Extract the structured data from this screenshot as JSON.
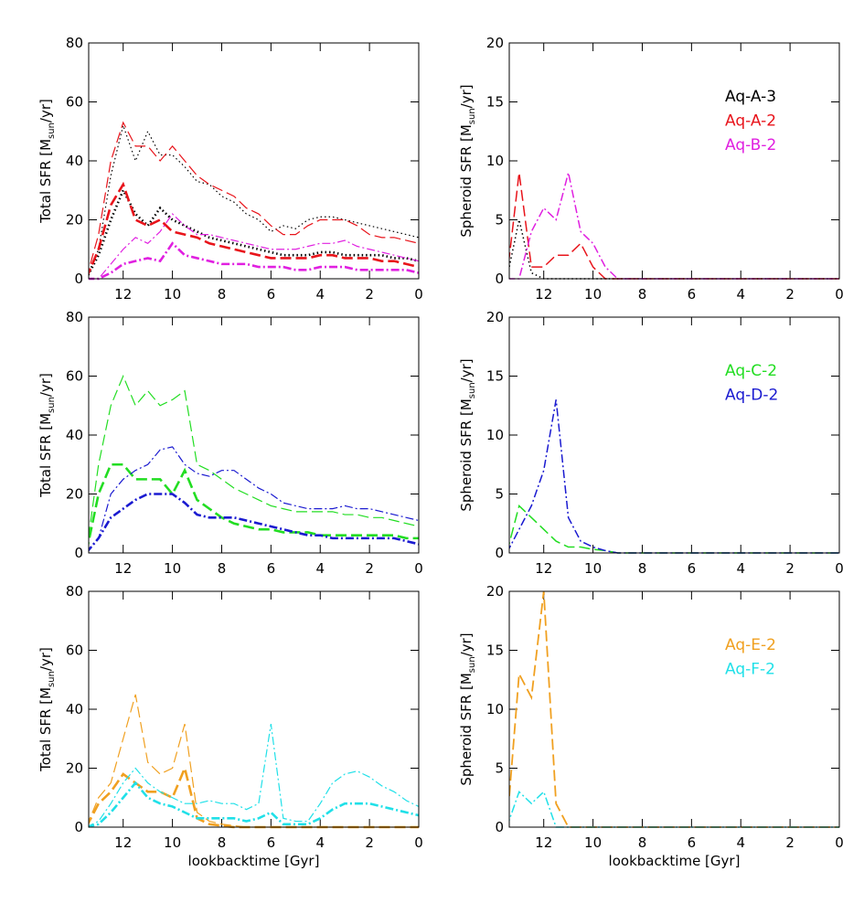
{
  "chart_data": [
    {
      "type": "line",
      "ylabel": [
        "Total SFR [M",
        "sun",
        "/yr]"
      ],
      "xlim": [
        13.4,
        0
      ],
      "xticks": [
        12,
        10,
        8,
        6,
        4,
        2,
        0
      ],
      "ylim": [
        0,
        80
      ],
      "yticks": [
        0,
        20,
        40,
        60,
        80
      ],
      "legend": false,
      "x": [
        13.5,
        13,
        12.5,
        12,
        11.5,
        11,
        10.5,
        10,
        9.5,
        9,
        8.5,
        8,
        7.5,
        7,
        6.5,
        6,
        5.5,
        5,
        4.5,
        4,
        3.5,
        3,
        2.5,
        2,
        1.5,
        1,
        0.5,
        0
      ],
      "series": [
        {
          "name": "Aq-A-3",
          "color": "#000000",
          "dash": "dotted",
          "width": 1.2,
          "values": [
            0,
            10,
            35,
            52,
            40,
            50,
            42,
            42,
            38,
            33,
            32,
            28,
            26,
            22,
            20,
            16,
            18,
            17,
            20,
            21,
            21,
            20,
            19,
            18,
            17,
            16,
            15,
            14
          ]
        },
        {
          "name": "Aq-A-3",
          "color": "#000000",
          "dash": "dotted",
          "width": 2.6,
          "values": [
            0,
            8,
            20,
            30,
            22,
            18,
            24,
            20,
            18,
            16,
            14,
            13,
            12,
            11,
            10,
            9,
            8,
            8,
            8,
            9,
            9,
            8,
            8,
            8,
            8,
            7,
            7,
            6
          ]
        },
        {
          "name": "Aq-A-2",
          "color": "#e8141b",
          "dash": "dashed",
          "width": 1.2,
          "values": [
            0,
            15,
            40,
            53,
            45,
            45,
            40,
            45,
            40,
            35,
            32,
            30,
            28,
            24,
            22,
            18,
            15,
            15,
            18,
            20,
            20,
            20,
            18,
            15,
            14,
            14,
            13,
            12
          ]
        },
        {
          "name": "Aq-A-2",
          "color": "#e8141b",
          "dash": "dashed",
          "width": 2.6,
          "values": [
            0,
            10,
            25,
            32,
            20,
            18,
            20,
            16,
            15,
            14,
            12,
            11,
            10,
            9,
            8,
            7,
            7,
            7,
            7,
            8,
            8,
            7,
            7,
            7,
            6,
            6,
            5,
            4
          ]
        },
        {
          "name": "Aq-B-2",
          "color": "#e020e0",
          "dash": "dashdot",
          "width": 1.2,
          "values": [
            0,
            0,
            5,
            10,
            14,
            12,
            16,
            22,
            18,
            15,
            15,
            14,
            13,
            12,
            11,
            10,
            10,
            10,
            11,
            12,
            12,
            13,
            11,
            10,
            9,
            8,
            7,
            6
          ]
        },
        {
          "name": "Aq-B-2",
          "color": "#e020e0",
          "dash": "dashdot",
          "width": 2.6,
          "values": [
            0,
            0,
            2,
            5,
            6,
            7,
            6,
            12,
            8,
            7,
            6,
            5,
            5,
            5,
            4,
            4,
            4,
            3,
            3,
            4,
            4,
            4,
            3,
            3,
            3,
            3,
            3,
            2
          ]
        }
      ]
    },
    {
      "type": "line",
      "ylabel": [
        "Spheroid SFR [M",
        "sun",
        "/yr]"
      ],
      "xlim": [
        13.4,
        0
      ],
      "xticks": [
        12,
        10,
        8,
        6,
        4,
        2,
        0
      ],
      "ylim": [
        0,
        20
      ],
      "yticks": [
        0,
        5,
        10,
        15,
        20
      ],
      "legend": true,
      "x": [
        13.5,
        13,
        12.5,
        12,
        11.5,
        11,
        10.5,
        10,
        9.5,
        9,
        8.5,
        8,
        7.5,
        7,
        6.5,
        6,
        5.5,
        5,
        4.5,
        4,
        3.5,
        3,
        2.5,
        2,
        1.5,
        1,
        0.5,
        0
      ],
      "series": [
        {
          "name": "Aq-A-3",
          "color": "#000000",
          "dash": "dotted",
          "width": 1.5,
          "values": [
            0,
            5,
            0.5,
            0,
            0,
            0,
            0,
            0,
            0,
            0,
            0,
            0,
            0,
            0,
            0,
            0,
            0,
            0,
            0,
            0,
            0,
            0,
            0,
            0,
            0,
            0,
            0,
            0
          ]
        },
        {
          "name": "Aq-A-2",
          "color": "#e8141b",
          "dash": "dashed",
          "width": 1.5,
          "values": [
            0,
            9,
            1,
            1,
            2,
            2,
            3,
            1,
            0,
            0,
            0,
            0,
            0,
            0,
            0,
            0,
            0,
            0,
            0,
            0,
            0,
            0,
            0,
            0,
            0,
            0,
            0,
            0
          ]
        },
        {
          "name": "Aq-B-2",
          "color": "#e020e0",
          "dash": "dashdot",
          "width": 1.5,
          "values": [
            0,
            0,
            4,
            6,
            5,
            9,
            4,
            3,
            1,
            0,
            0,
            0,
            0,
            0,
            0,
            0,
            0,
            0,
            0,
            0,
            0,
            0,
            0,
            0,
            0,
            0,
            0,
            0
          ]
        }
      ]
    },
    {
      "type": "line",
      "ylabel": [
        "Total SFR [M",
        "sun",
        "/yr]"
      ],
      "xlim": [
        13.4,
        0
      ],
      "xticks": [
        12,
        10,
        8,
        6,
        4,
        2,
        0
      ],
      "ylim": [
        0,
        80
      ],
      "yticks": [
        0,
        20,
        40,
        60,
        80
      ],
      "legend": false,
      "x": [
        13.5,
        13,
        12.5,
        12,
        11.5,
        11,
        10.5,
        10,
        9.5,
        9,
        8.5,
        8,
        7.5,
        7,
        6.5,
        6,
        5.5,
        5,
        4.5,
        4,
        3.5,
        3,
        2.5,
        2,
        1.5,
        1,
        0.5,
        0
      ],
      "series": [
        {
          "name": "Aq-C-2",
          "color": "#22dd22",
          "dash": "dashed",
          "width": 1.2,
          "values": [
            0,
            30,
            50,
            60,
            50,
            55,
            50,
            52,
            55,
            30,
            28,
            25,
            22,
            20,
            18,
            16,
            15,
            14,
            14,
            14,
            14,
            13,
            13,
            12,
            12,
            11,
            10,
            9
          ]
        },
        {
          "name": "Aq-C-2",
          "color": "#22dd22",
          "dash": "dashed",
          "width": 2.6,
          "values": [
            0,
            20,
            30,
            30,
            25,
            25,
            25,
            20,
            28,
            18,
            15,
            12,
            10,
            9,
            8,
            8,
            7,
            7,
            7,
            6,
            6,
            6,
            6,
            6,
            6,
            6,
            5,
            5
          ]
        },
        {
          "name": "Aq-D-2",
          "color": "#1a1ad0",
          "dash": "dashdot",
          "width": 1.2,
          "values": [
            0,
            5,
            20,
            25,
            28,
            30,
            35,
            36,
            30,
            27,
            26,
            28,
            28,
            25,
            22,
            20,
            17,
            16,
            15,
            15,
            15,
            16,
            15,
            15,
            14,
            13,
            12,
            11
          ]
        },
        {
          "name": "Aq-D-2",
          "color": "#1a1ad0",
          "dash": "dashdot",
          "width": 2.6,
          "values": [
            0,
            5,
            12,
            15,
            18,
            20,
            20,
            20,
            17,
            13,
            12,
            12,
            12,
            11,
            10,
            9,
            8,
            7,
            6,
            6,
            5,
            5,
            5,
            5,
            5,
            5,
            4,
            3
          ]
        }
      ]
    },
    {
      "type": "line",
      "ylabel": [
        "Spheroid SFR [M",
        "sun",
        "/yr]"
      ],
      "xlim": [
        13.4,
        0
      ],
      "xticks": [
        12,
        10,
        8,
        6,
        4,
        2,
        0
      ],
      "ylim": [
        0,
        20
      ],
      "yticks": [
        0,
        5,
        10,
        15,
        20
      ],
      "legend": true,
      "x": [
        13.5,
        13,
        12.5,
        12,
        11.5,
        11,
        10.5,
        10,
        9.5,
        9,
        8.5,
        8,
        7.5,
        7,
        6.5,
        6,
        5.5,
        5,
        4.5,
        4,
        3.5,
        3,
        2.5,
        2,
        1.5,
        1,
        0.5,
        0
      ],
      "series": [
        {
          "name": "Aq-C-2",
          "color": "#22dd22",
          "dash": "dashed",
          "width": 1.5,
          "values": [
            0,
            4,
            3,
            2,
            1,
            0.5,
            0.5,
            0.3,
            0.2,
            0,
            0,
            0,
            0,
            0,
            0,
            0,
            0,
            0,
            0,
            0,
            0,
            0,
            0,
            0,
            0,
            0,
            0,
            0
          ]
        },
        {
          "name": "Aq-D-2",
          "color": "#1a1ad0",
          "dash": "dashdot",
          "width": 1.5,
          "values": [
            0,
            2,
            4,
            7,
            13,
            3,
            1,
            0.5,
            0.2,
            0,
            0,
            0,
            0,
            0,
            0,
            0,
            0,
            0,
            0,
            0,
            0,
            0,
            0,
            0,
            0,
            0,
            0,
            0
          ]
        }
      ]
    },
    {
      "type": "line",
      "ylabel": [
        "Total SFR [M",
        "sun",
        "/yr]"
      ],
      "xlabel": "lookbacktime [Gyr]",
      "xlim": [
        13.4,
        0
      ],
      "xticks": [
        12,
        10,
        8,
        6,
        4,
        2,
        0
      ],
      "ylim": [
        0,
        80
      ],
      "yticks": [
        0,
        20,
        40,
        60,
        80
      ],
      "legend": false,
      "x": [
        13.5,
        13,
        12.5,
        12,
        11.5,
        11,
        10.5,
        10,
        9.5,
        9,
        8.5,
        8,
        7.5,
        7,
        6.5,
        6,
        5.5,
        5,
        4.5,
        4,
        3.5,
        3,
        2.5,
        2,
        1.5,
        1,
        0.5,
        0
      ],
      "series": [
        {
          "name": "Aq-E-2",
          "color": "#f0a020",
          "dash": "dashed",
          "width": 1.2,
          "values": [
            0,
            10,
            15,
            30,
            45,
            22,
            18,
            20,
            35,
            5,
            2,
            1,
            0.5,
            0,
            0,
            0,
            0,
            0,
            0,
            0,
            0,
            0,
            0,
            0,
            0,
            0,
            0,
            0
          ]
        },
        {
          "name": "Aq-E-2",
          "color": "#f0a020",
          "dash": "dashed",
          "width": 2.6,
          "values": [
            0,
            8,
            12,
            18,
            15,
            12,
            12,
            10,
            20,
            3,
            1,
            0.5,
            0,
            0,
            0,
            0,
            0,
            0,
            0,
            0,
            0,
            0,
            0,
            0,
            0,
            0,
            0,
            0
          ]
        },
        {
          "name": "Aq-F-2",
          "color": "#20e0e8",
          "dash": "dashdot",
          "width": 1.2,
          "values": [
            0,
            2,
            8,
            15,
            20,
            15,
            12,
            10,
            8,
            8,
            9,
            8,
            8,
            6,
            8,
            35,
            3,
            2,
            2,
            8,
            15,
            18,
            19,
            17,
            14,
            12,
            9,
            7
          ]
        },
        {
          "name": "Aq-F-2",
          "color": "#20e0e8",
          "dash": "dashdot",
          "width": 2.6,
          "values": [
            0,
            1,
            5,
            10,
            15,
            10,
            8,
            7,
            5,
            3,
            3,
            3,
            3,
            2,
            3,
            5,
            1,
            1,
            1,
            3,
            6,
            8,
            8,
            8,
            7,
            6,
            5,
            4
          ]
        }
      ]
    },
    {
      "type": "line",
      "ylabel": [
        "Spheroid SFR [M",
        "sun",
        "/yr]"
      ],
      "xlabel": "lookbacktime [Gyr]",
      "xlim": [
        13.4,
        0
      ],
      "xticks": [
        12,
        10,
        8,
        6,
        4,
        2,
        0
      ],
      "ylim": [
        0,
        20
      ],
      "yticks": [
        0,
        5,
        10,
        15,
        20
      ],
      "legend": true,
      "x": [
        13.5,
        13,
        12.5,
        12,
        11.5,
        11,
        10.5,
        10,
        9.5,
        9,
        8.5,
        8,
        7.5,
        7,
        6.5,
        6,
        5.5,
        5,
        4.5,
        4,
        3.5,
        3,
        2.5,
        2,
        1.5,
        1,
        0.5,
        0
      ],
      "series": [
        {
          "name": "Aq-E-2",
          "color": "#f0a020",
          "dash": "dashed",
          "width": 1.8,
          "values": [
            0,
            13,
            11,
            20,
            2,
            0,
            0,
            0,
            0,
            0,
            0,
            0,
            0,
            0,
            0,
            0,
            0,
            0,
            0,
            0,
            0,
            0,
            0,
            0,
            0,
            0,
            0,
            0
          ]
        },
        {
          "name": "Aq-F-2",
          "color": "#20e0e8",
          "dash": "dashdot",
          "width": 1.5,
          "values": [
            0,
            3,
            2,
            3,
            0,
            0,
            0,
            0,
            0,
            0,
            0,
            0,
            0,
            0,
            0,
            0,
            0,
            0,
            0,
            0,
            0,
            0,
            0,
            0,
            0,
            0,
            0,
            0
          ]
        }
      ]
    }
  ]
}
